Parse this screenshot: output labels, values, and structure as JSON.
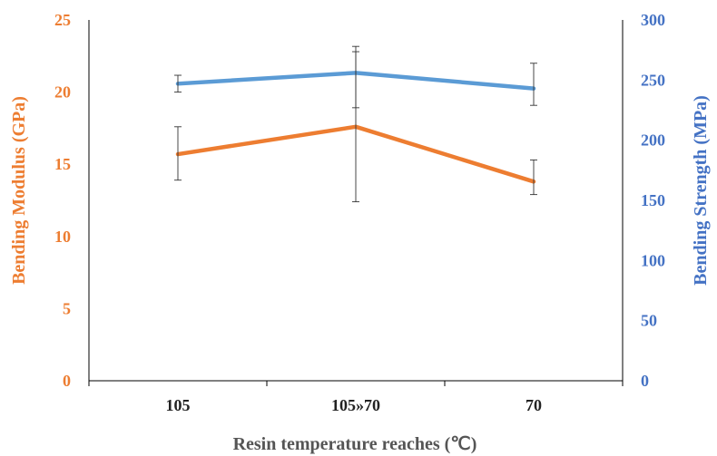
{
  "chart_data": {
    "type": "line",
    "xlabel": "Resin temperature reaches (℃)",
    "categories": [
      "105",
      "105»70",
      "70"
    ],
    "y_left": {
      "label": "Bending Modulus (GPa)",
      "ylim": [
        0,
        25
      ],
      "ticks": [
        "0",
        "5",
        "10",
        "15",
        "20",
        "25"
      ],
      "color": "#ED7D31"
    },
    "y_right": {
      "label": "Bending Strength (MPa)",
      "ylim": [
        0,
        300
      ],
      "ticks": [
        "0",
        "50",
        "100",
        "150",
        "200",
        "250",
        "300"
      ],
      "color": "#4472C4"
    },
    "series": [
      {
        "axis": "left",
        "color": "#ED7D31",
        "values": [
          15.7,
          17.6,
          13.8
        ],
        "error_low": [
          13.9,
          12.4,
          12.9
        ],
        "error_high": [
          17.6,
          22.8,
          15.3
        ]
      },
      {
        "axis": "right",
        "color": "#5B9BD5",
        "values": [
          247,
          256,
          243
        ],
        "error_low": [
          240,
          227,
          229
        ],
        "error_high": [
          254,
          278,
          264
        ]
      }
    ],
    "grid": false,
    "legend": "none"
  }
}
